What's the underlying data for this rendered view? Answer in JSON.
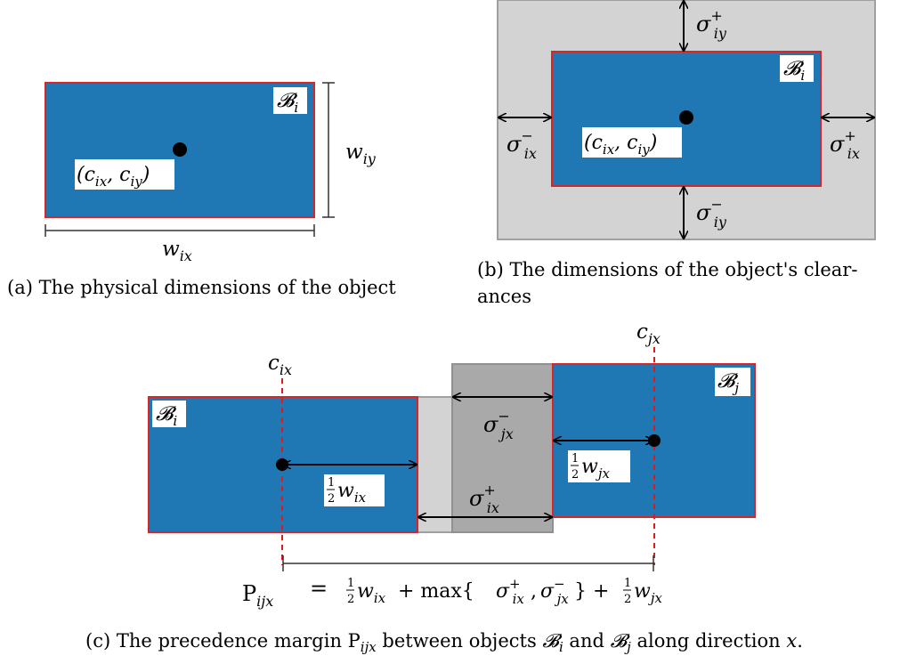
{
  "panel_a": {
    "object_label": "𝓑",
    "object_sub": "i",
    "center_label": "(c",
    "center_sub1": "ix",
    "center_mid": ", c",
    "center_sub2": "iy",
    "center_end": ")",
    "width_label": "w",
    "width_sub": "ix",
    "height_label": "w",
    "height_sub": "iy",
    "caption": "(a) The physical dimensions of the object"
  },
  "panel_b": {
    "object_label": "𝓑",
    "object_sub": "i",
    "center_label": "(c",
    "center_sub1": "ix",
    "center_mid": ", c",
    "center_sub2": "iy",
    "center_end": ")",
    "sigma": "σ",
    "top_sup": "+",
    "top_sub": "iy",
    "bottom_sup": "−",
    "bottom_sub": "iy",
    "left_sup": "−",
    "left_sub": "ix",
    "right_sup": "+",
    "right_sub": "ix",
    "caption_line1": "(b) The dimensions of the object's clear-",
    "caption_line2": "ances"
  },
  "panel_c": {
    "obj_i_label": "𝓑",
    "obj_i_sub": "i",
    "obj_j_label": "𝓑",
    "obj_j_sub": "j",
    "cix": "c",
    "cix_sub": "ix",
    "cjx": "c",
    "cjx_sub": "jx",
    "sigma": "σ",
    "sig_j_sup": "−",
    "sig_j_sub": "jx",
    "sig_i_sup": "+",
    "sig_i_sub": "ix",
    "half": "1",
    "half_den": "2",
    "w": "w",
    "half_wix_sub": "ix",
    "half_wjx_sub": "jx",
    "formula_P": "P",
    "formula_P_sub": "ijx",
    "formula_eq": "=",
    "formula_plus1": "+ max{",
    "formula_comma": ",",
    "formula_close": "} +",
    "caption": "(c) The precedence margin P"
  },
  "caption_c_tail": {
    "sub": "ijx",
    "mid": " between objects ",
    "bi": "𝓑",
    "bi_sub": "i",
    "and": " and ",
    "bj": "𝓑",
    "bj_sub": "j",
    "end": " along direction ",
    "x": "x",
    "dot": "."
  },
  "colors": {
    "object_fill": "#1f77b4",
    "object_stroke": "#d62728",
    "clearance_fill": "#d3d3d3",
    "overlap_fill": "#a9a9a9",
    "center_line": "#e31a1c"
  }
}
